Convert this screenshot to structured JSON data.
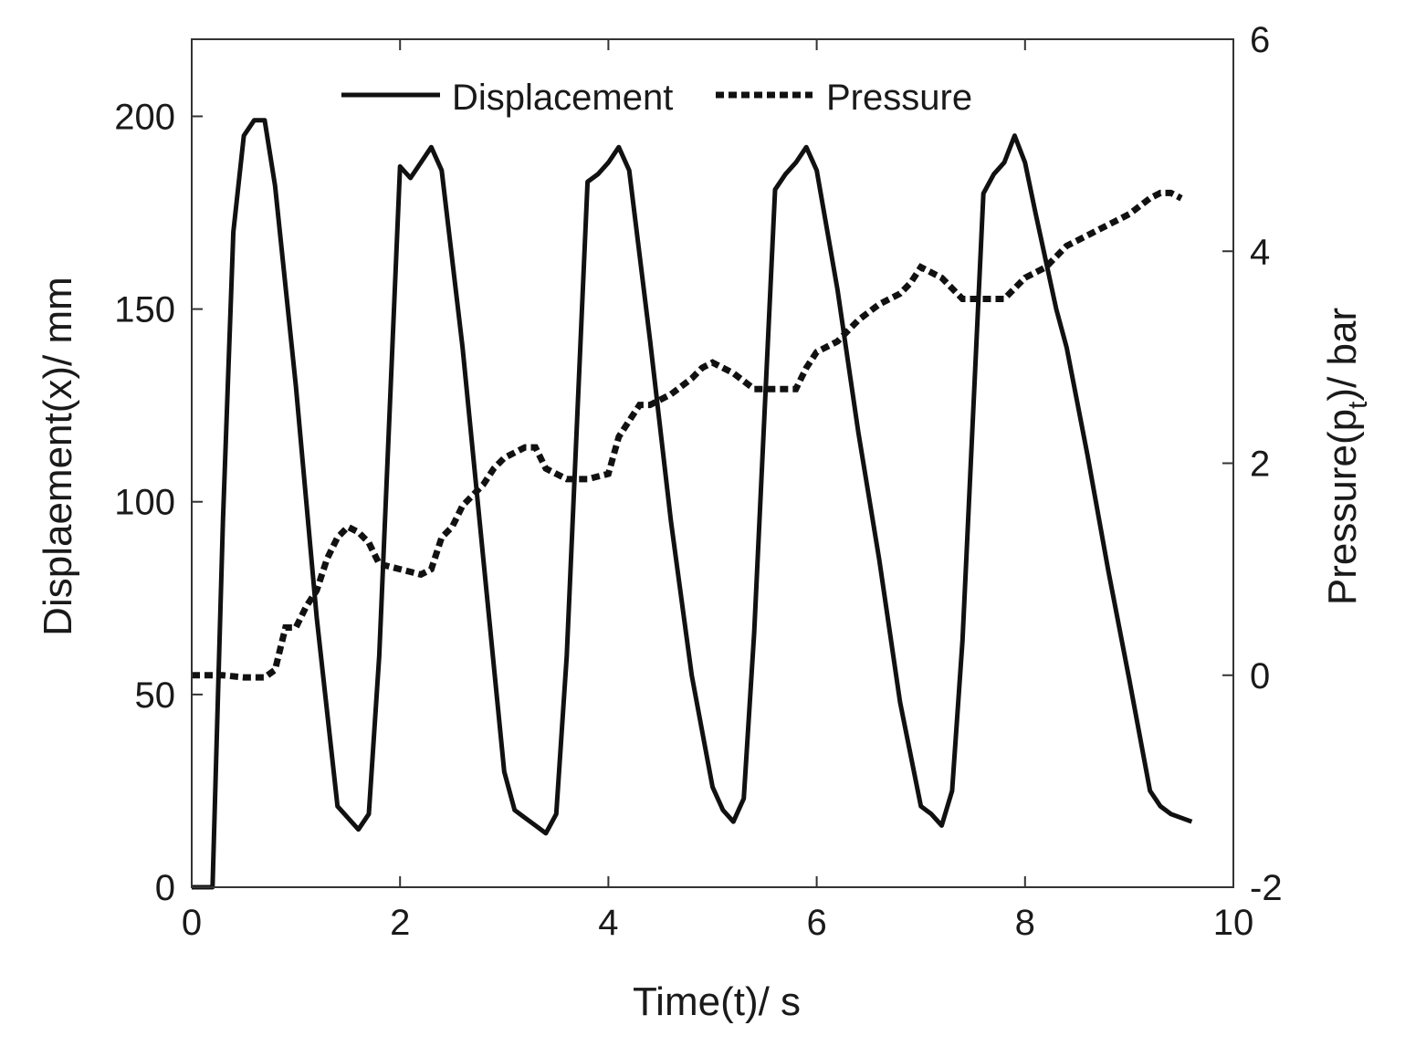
{
  "chart_data": {
    "type": "line",
    "title": "",
    "xlabel": "Time(t)/ s",
    "ylabel": "Displaement(x)/ mm",
    "y2label_main": "Pressure(p",
    "y2label_sub": "t",
    "y2label_tail": ")/ bar",
    "xlim": [
      0,
      10
    ],
    "ylim": [
      0,
      220
    ],
    "y2lim": [
      -2,
      6
    ],
    "xticks": [
      "0",
      "2",
      "4",
      "6",
      "8",
      "10"
    ],
    "yticks": [
      "0",
      "50",
      "100",
      "150",
      "200"
    ],
    "y2ticks": [
      "-2",
      "0",
      "2",
      "4",
      "6"
    ],
    "legend": {
      "position": "top-center",
      "entries": [
        "Displacement",
        "Pressure"
      ]
    },
    "series": [
      {
        "name": "Displacement",
        "axis": "left",
        "style": "solid",
        "x": [
          0,
          0.2,
          0.3,
          0.4,
          0.5,
          0.6,
          0.7,
          0.8,
          1.0,
          1.2,
          1.4,
          1.5,
          1.6,
          1.7,
          1.8,
          2.0,
          2.1,
          2.2,
          2.3,
          2.4,
          2.6,
          2.8,
          3.0,
          3.1,
          3.2,
          3.3,
          3.4,
          3.5,
          3.6,
          3.8,
          3.9,
          4.0,
          4.1,
          4.2,
          4.4,
          4.6,
          4.8,
          5.0,
          5.1,
          5.2,
          5.3,
          5.4,
          5.6,
          5.7,
          5.8,
          5.9,
          6.0,
          6.2,
          6.4,
          6.6,
          6.8,
          7.0,
          7.1,
          7.2,
          7.3,
          7.4,
          7.6,
          7.7,
          7.8,
          7.9,
          8.0,
          8.1,
          8.3,
          8.4,
          8.6,
          8.8,
          9.0,
          9.2,
          9.3,
          9.4,
          9.6
        ],
        "values": [
          0,
          0,
          95,
          170,
          195,
          199,
          199,
          182,
          130,
          70,
          21,
          18,
          15,
          19,
          60,
          187,
          184,
          188,
          192,
          186,
          140,
          85,
          30,
          20,
          18,
          16,
          14,
          19,
          60,
          183,
          185,
          188,
          192,
          186,
          142,
          95,
          55,
          26,
          20,
          17,
          23,
          66,
          181,
          185,
          188,
          192,
          186,
          155,
          118,
          85,
          48,
          21,
          19,
          16,
          25,
          64,
          180,
          185,
          188,
          195,
          188,
          175,
          150,
          140,
          112,
          82,
          54,
          25,
          21,
          19,
          17
        ]
      },
      {
        "name": "Pressure",
        "axis": "right",
        "style": "dotted",
        "x": [
          0,
          0.3,
          0.5,
          0.7,
          0.8,
          0.9,
          1.0,
          1.1,
          1.2,
          1.3,
          1.4,
          1.5,
          1.6,
          1.7,
          1.8,
          2.0,
          2.2,
          2.3,
          2.4,
          2.5,
          2.6,
          2.7,
          2.8,
          2.9,
          3.0,
          3.2,
          3.3,
          3.4,
          3.6,
          3.8,
          4.0,
          4.1,
          4.2,
          4.3,
          4.4,
          4.6,
          4.8,
          4.9,
          5.0,
          5.1,
          5.2,
          5.4,
          5.6,
          5.8,
          5.9,
          6.0,
          6.2,
          6.4,
          6.6,
          6.8,
          6.9,
          7.0,
          7.1,
          7.2,
          7.4,
          7.6,
          7.8,
          7.9,
          8.0,
          8.2,
          8.4,
          8.6,
          8.8,
          9.0,
          9.2,
          9.3,
          9.4,
          9.5
        ],
        "values": [
          0.0,
          0.0,
          -0.02,
          -0.02,
          0.05,
          0.45,
          0.45,
          0.65,
          0.8,
          1.1,
          1.3,
          1.4,
          1.35,
          1.25,
          1.05,
          1.0,
          0.95,
          1.0,
          1.3,
          1.4,
          1.6,
          1.7,
          1.8,
          1.95,
          2.05,
          2.15,
          2.15,
          1.95,
          1.85,
          1.85,
          1.9,
          2.25,
          2.4,
          2.55,
          2.55,
          2.65,
          2.8,
          2.9,
          2.95,
          2.9,
          2.85,
          2.7,
          2.7,
          2.7,
          2.9,
          3.05,
          3.15,
          3.35,
          3.5,
          3.6,
          3.7,
          3.85,
          3.8,
          3.75,
          3.55,
          3.55,
          3.55,
          3.65,
          3.75,
          3.85,
          4.05,
          4.15,
          4.25,
          4.35,
          4.5,
          4.55,
          4.55,
          4.5
        ]
      }
    ]
  }
}
